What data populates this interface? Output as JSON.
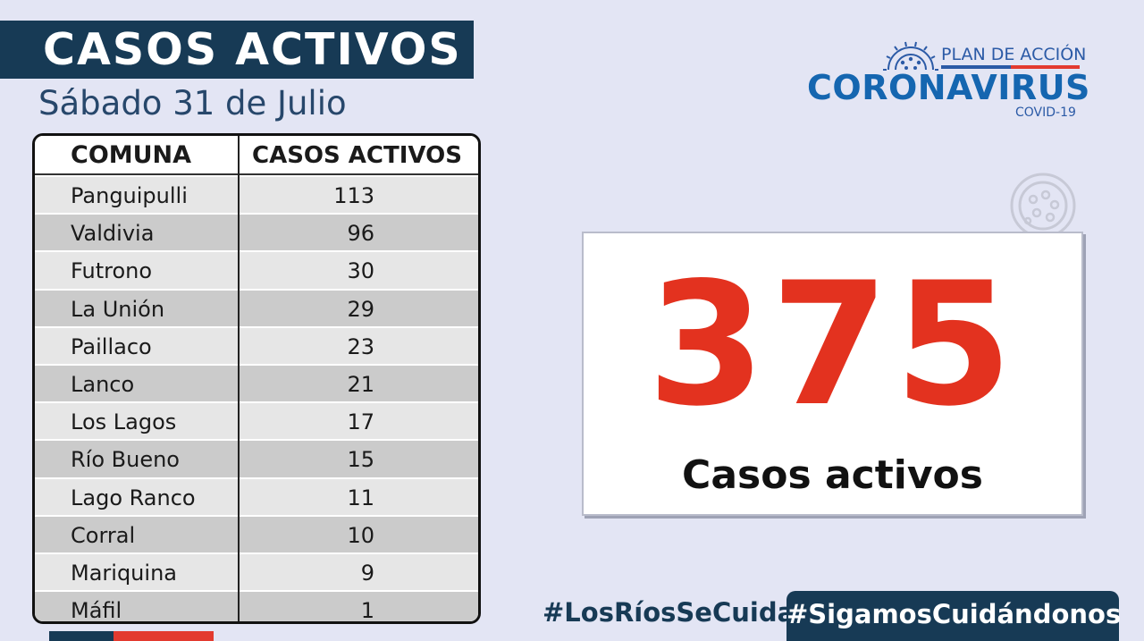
{
  "header": {
    "title": "CASOS ACTIVOS",
    "date": "Sábado 31 de Julio"
  },
  "table": {
    "col_comuna": "COMUNA",
    "col_casos": "CASOS ACTIVOS",
    "rows": [
      {
        "comuna": "Panguipulli",
        "casos": "113"
      },
      {
        "comuna": "Valdivia",
        "casos": "96"
      },
      {
        "comuna": "Futrono",
        "casos": "30"
      },
      {
        "comuna": "La Unión",
        "casos": "29"
      },
      {
        "comuna": "Paillaco",
        "casos": "23"
      },
      {
        "comuna": "Lanco",
        "casos": "21"
      },
      {
        "comuna": "Los Lagos",
        "casos": "17"
      },
      {
        "comuna": "Río Bueno",
        "casos": "15"
      },
      {
        "comuna": "Lago Ranco",
        "casos": "11"
      },
      {
        "comuna": "Corral",
        "casos": "10"
      },
      {
        "comuna": "Mariquina",
        "casos": "9"
      },
      {
        "comuna": "Máfil",
        "casos": "1"
      }
    ]
  },
  "logo": {
    "plan": "PLAN DE ACCIÓN",
    "name": "CORONAVIRUS",
    "sub": "COVID-19",
    "icon": "virus-icon"
  },
  "total": {
    "number": "375",
    "label": "Casos activos"
  },
  "footer": {
    "hashtag_1": "#LosRíosSeCuida",
    "hashtag_2": "#SigamosCuidándonos"
  },
  "colors": {
    "navy": "#173a55",
    "red": "#e3321f",
    "background": "#e3e5f4",
    "brand_blue": "#1566b0"
  }
}
